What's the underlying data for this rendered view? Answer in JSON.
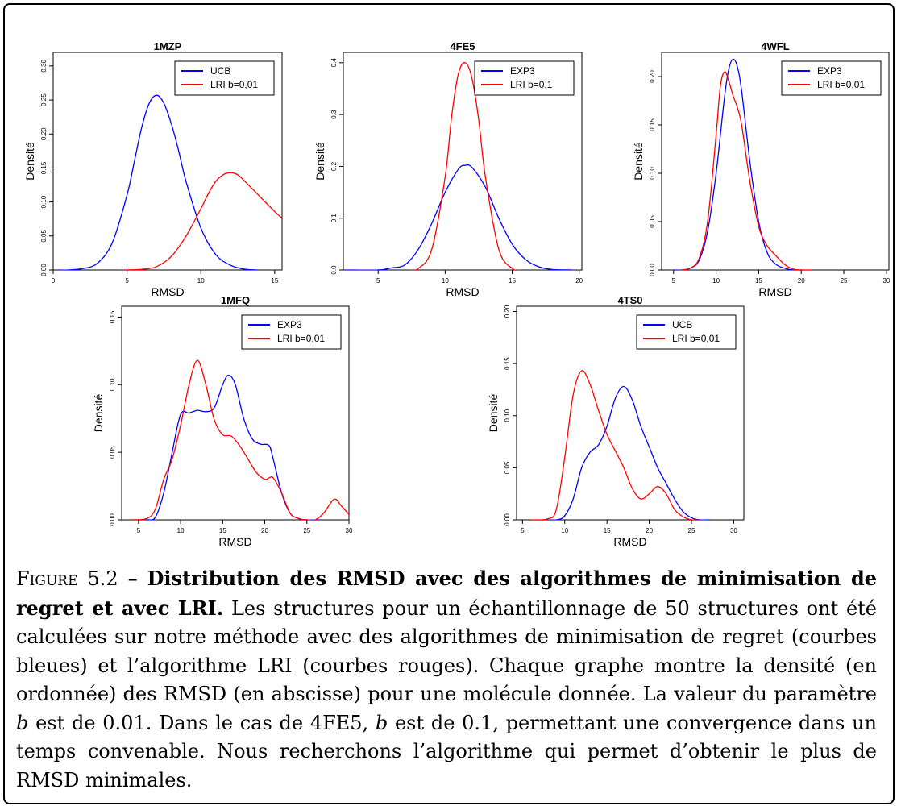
{
  "colors": {
    "blue": "#0000ff",
    "red": "#ff0000"
  },
  "chart_data": [
    {
      "type": "line",
      "title": "1MZP",
      "xlabel": "RMSD",
      "ylabel": "Densité",
      "xlim": [
        0,
        15.5
      ],
      "ylim": [
        0,
        0.32
      ],
      "xticks": [
        0,
        5,
        10,
        15
      ],
      "yticks": [
        0.0,
        0.05,
        0.1,
        0.15,
        0.2,
        0.25,
        0.3
      ],
      "ytick_labels": [
        "0.00",
        "0.05",
        "0.10",
        "0.15",
        "0.20",
        "0.25",
        "0.30"
      ],
      "legend": "top-right",
      "series": [
        {
          "name": "UCB",
          "color": "#0000ff",
          "x": [
            0.3,
            1,
            2,
            3,
            4,
            5,
            5.5,
            6,
            6.5,
            7,
            7.5,
            8,
            8.5,
            9,
            10,
            11,
            12,
            13,
            13.8
          ],
          "y": [
            0.0,
            0.0,
            0.002,
            0.01,
            0.04,
            0.11,
            0.16,
            0.21,
            0.245,
            0.257,
            0.245,
            0.215,
            0.175,
            0.13,
            0.062,
            0.023,
            0.007,
            0.001,
            0.0
          ]
        },
        {
          "name": "LRI b=0,01",
          "color": "#ff0000",
          "x": [
            4.8,
            6,
            7,
            8,
            9,
            10,
            10.5,
            11,
            11.5,
            12,
            12.5,
            13,
            14,
            15,
            15.5
          ],
          "y": [
            0.0,
            0.001,
            0.005,
            0.02,
            0.05,
            0.09,
            0.112,
            0.13,
            0.14,
            0.143,
            0.14,
            0.13,
            0.108,
            0.086,
            0.076
          ]
        }
      ]
    },
    {
      "type": "line",
      "title": "4FE5",
      "xlabel": "RMSD",
      "ylabel": "Densité",
      "xlim": [
        2.4,
        20.2
      ],
      "ylim": [
        0,
        0.42
      ],
      "xticks": [
        5,
        10,
        15,
        20
      ],
      "yticks": [
        0.0,
        0.1,
        0.2,
        0.3,
        0.4
      ],
      "ytick_labels": [
        "0.0",
        "0.1",
        "0.2",
        "0.3",
        "0.4"
      ],
      "legend": "top-right",
      "series": [
        {
          "name": "EXP3",
          "color": "#0000ff",
          "x": [
            2.5,
            5,
            6,
            7,
            8,
            9,
            10,
            11,
            11.5,
            12,
            13,
            14,
            15,
            16,
            17,
            18,
            19.5
          ],
          "y": [
            0.0,
            0.0,
            0.004,
            0.01,
            0.04,
            0.09,
            0.15,
            0.195,
            0.202,
            0.198,
            0.16,
            0.1,
            0.05,
            0.02,
            0.006,
            0.001,
            0.0
          ],
          "smooth": true
        },
        {
          "name": "LRI b=0,1",
          "color": "#ff0000",
          "x": [
            7.4,
            8,
            9,
            10,
            10.5,
            11,
            11.5,
            12,
            12.5,
            13,
            14,
            15,
            15.6
          ],
          "y": [
            0.0,
            0.003,
            0.04,
            0.18,
            0.3,
            0.38,
            0.4,
            0.37,
            0.29,
            0.18,
            0.04,
            0.003,
            0.0
          ]
        }
      ]
    },
    {
      "type": "line",
      "title": "4WFL",
      "xlabel": "RMSD",
      "ylabel": "Densité",
      "xlim": [
        3.6,
        30.3
      ],
      "ylim": [
        0,
        0.225
      ],
      "xticks": [
        5,
        10,
        15,
        20,
        25,
        30
      ],
      "yticks": [
        0.0,
        0.05,
        0.1,
        0.15,
        0.2
      ],
      "ytick_labels": [
        "0.00",
        "0.05",
        "0.10",
        "0.15",
        "0.20"
      ],
      "legend": "top-right",
      "series": [
        {
          "name": "EXP3",
          "color": "#0000ff",
          "x": [
            5,
            6,
            7,
            8,
            9,
            10,
            11,
            11.5,
            12,
            12.5,
            13,
            14,
            15,
            16,
            17,
            18,
            19,
            20
          ],
          "y": [
            0.0,
            0.0,
            0.002,
            0.01,
            0.04,
            0.1,
            0.18,
            0.208,
            0.218,
            0.21,
            0.185,
            0.11,
            0.05,
            0.018,
            0.006,
            0.002,
            0.0,
            0.0
          ]
        },
        {
          "name": "LRI b=0,01",
          "color": "#ff0000",
          "x": [
            6,
            7,
            8,
            9,
            10,
            10.5,
            11,
            11.5,
            12,
            12.5,
            13,
            14,
            15,
            16,
            17,
            18,
            19,
            20,
            21.3
          ],
          "y": [
            0.0,
            0.002,
            0.012,
            0.05,
            0.14,
            0.19,
            0.205,
            0.195,
            0.18,
            0.168,
            0.15,
            0.09,
            0.045,
            0.025,
            0.015,
            0.006,
            0.001,
            0.0,
            0.0
          ]
        }
      ]
    },
    {
      "type": "line",
      "title": "1MFQ",
      "xlabel": "RMSD",
      "ylabel": "Densité",
      "xlim": [
        3,
        30
      ],
      "ylim": [
        0,
        0.158
      ],
      "xticks": [
        5,
        10,
        15,
        20,
        25,
        30
      ],
      "yticks": [
        0.0,
        0.05,
        0.1,
        0.15
      ],
      "ytick_labels": [
        "0.00",
        "0.05",
        "0.10",
        "0.15"
      ],
      "legend": "top-right",
      "series": [
        {
          "name": "EXP3",
          "color": "#0000ff",
          "x": [
            4.3,
            6,
            7,
            8,
            9,
            10,
            11,
            12,
            13,
            14,
            15,
            15.7,
            16.5,
            17.5,
            18.5,
            19.5,
            20.5,
            21,
            22,
            23,
            24,
            25,
            26.5
          ],
          "y": [
            0.0,
            0.0,
            0.002,
            0.02,
            0.05,
            0.078,
            0.079,
            0.081,
            0.08,
            0.083,
            0.1,
            0.107,
            0.1,
            0.075,
            0.06,
            0.056,
            0.055,
            0.045,
            0.02,
            0.005,
            0.001,
            0.0,
            0.0
          ]
        },
        {
          "name": "LRI b=0,01",
          "color": "#ff0000",
          "x": [
            4.3,
            6,
            7,
            8,
            9,
            10,
            11,
            12,
            13,
            14,
            15,
            16,
            17,
            18,
            19,
            20,
            20.5,
            21,
            22,
            23,
            24,
            25,
            26,
            27,
            28,
            28.5,
            29,
            30
          ],
          "y": [
            0.0,
            0.001,
            0.008,
            0.03,
            0.045,
            0.07,
            0.1,
            0.118,
            0.1,
            0.074,
            0.063,
            0.062,
            0.055,
            0.045,
            0.035,
            0.03,
            0.031,
            0.031,
            0.02,
            0.005,
            0.001,
            0.0,
            0.0,
            0.005,
            0.014,
            0.015,
            0.011,
            0.004
          ]
        }
      ]
    },
    {
      "type": "line",
      "title": "4TS0",
      "xlabel": "RMSD",
      "ylabel": "Densité",
      "xlim": [
        4.3,
        31.2
      ],
      "ylim": [
        0,
        0.205
      ],
      "xticks": [
        5,
        10,
        15,
        20,
        25,
        30
      ],
      "yticks": [
        0.0,
        0.05,
        0.1,
        0.15,
        0.2
      ],
      "ytick_labels": [
        "0.00",
        "0.05",
        "0.10",
        "0.15",
        "0.20"
      ],
      "legend": "top-right",
      "series": [
        {
          "name": "UCB",
          "color": "#0000ff",
          "x": [
            6.8,
            9,
            10,
            11,
            12,
            13,
            14,
            15,
            16,
            17,
            18,
            19,
            20,
            21,
            22,
            23,
            24,
            25,
            26,
            27.2
          ],
          "y": [
            0.0,
            0.0,
            0.004,
            0.02,
            0.05,
            0.065,
            0.072,
            0.09,
            0.117,
            0.128,
            0.115,
            0.09,
            0.07,
            0.05,
            0.035,
            0.02,
            0.008,
            0.002,
            0.0,
            0.0
          ]
        },
        {
          "name": "LRI b=0,01",
          "color": "#ff0000",
          "x": [
            6,
            8,
            9,
            10,
            11,
            12,
            13,
            14,
            15,
            16,
            17,
            18,
            19,
            20,
            21,
            22,
            23,
            24,
            25,
            26
          ],
          "y": [
            0.0,
            0.001,
            0.01,
            0.06,
            0.12,
            0.143,
            0.13,
            0.105,
            0.082,
            0.066,
            0.05,
            0.03,
            0.02,
            0.025,
            0.032,
            0.025,
            0.01,
            0.003,
            0.0,
            0.0
          ]
        }
      ]
    }
  ],
  "caption": {
    "figure_label": "Figure 5.2 – ",
    "bold_text": "Distribution des RMSD avec des algorithmes de minimisation de regret et avec LRI.",
    "text_1": " Les structures pour un échantillonnage de 50 structures ont été calculées sur notre méthode avec des algorithmes de minimisation de regret (courbes bleues) et l’algorithme LRI (courbes rouges). Chaque graphe montre la densité (en ordonnée) des RMSD (en abscisse) pour une molécule donnée. La valeur du paramètre ",
    "var_1": "b",
    "text_2": " est de 0.01. Dans le cas de 4FE5, ",
    "var_2": "b",
    "text_3": " est de 0.1, permettant une convergence dans un temps convenable. Nous recherchons l’algorithme qui permet d’obtenir le plus de RMSD minimales."
  }
}
